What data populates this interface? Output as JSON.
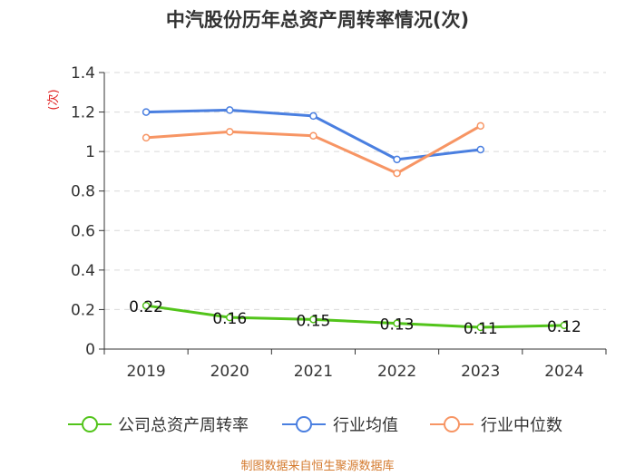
{
  "source": "制图数据来自恒生聚源数据库",
  "chart_data": {
    "type": "line",
    "title": "中汽股份历年总资产周转率情况(次)",
    "ylabel": "(次)",
    "ylim": [
      0,
      1.4
    ],
    "yticks": [
      0,
      0.2,
      0.4,
      0.6,
      0.8,
      1,
      1.2,
      1.4
    ],
    "ytick_labels": [
      "0",
      "0.2",
      "0.4",
      "0.6",
      "0.8",
      "1",
      "1.2",
      "1.4"
    ],
    "categories": [
      "2019",
      "2020",
      "2021",
      "2022",
      "2023",
      "2024"
    ],
    "grid": true,
    "legend_position": "bottom",
    "series": [
      {
        "name": "公司总资产周转率",
        "color": "#52c41a",
        "values": [
          0.22,
          0.16,
          0.15,
          0.13,
          0.11,
          0.12
        ],
        "labels": [
          "0.22",
          "0.16",
          "0.15",
          "0.13",
          "0.11",
          "0.12"
        ]
      },
      {
        "name": "行业均值",
        "color": "#4a7fe0",
        "values": [
          1.2,
          1.21,
          1.18,
          0.96,
          1.01,
          null
        ]
      },
      {
        "name": "行业中位数",
        "color": "#f79564",
        "values": [
          1.07,
          1.1,
          1.08,
          0.89,
          1.13,
          null
        ]
      }
    ]
  }
}
